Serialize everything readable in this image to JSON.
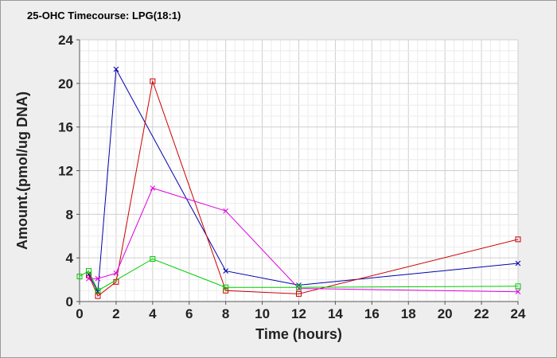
{
  "chart_data": {
    "type": "line",
    "title": "25-OHC Timecourse: LPG(18:1)",
    "xlabel": "Time (hours)",
    "ylabel": "Amount.(pmol/ug DNA)",
    "xlim": [
      0,
      24
    ],
    "ylim": [
      0,
      24
    ],
    "x_ticks": [
      0,
      2,
      4,
      6,
      8,
      10,
      12,
      14,
      16,
      18,
      20,
      22,
      24
    ],
    "y_ticks": [
      0,
      4,
      8,
      12,
      16,
      20,
      24
    ],
    "grid": true,
    "legend": "none",
    "series": [
      {
        "color": "#0000aa",
        "marker": "x",
        "points": [
          [
            0.5,
            2.5
          ],
          [
            1,
            0.9
          ],
          [
            2,
            21.3
          ],
          [
            8,
            2.8
          ],
          [
            12,
            1.5
          ],
          [
            24,
            3.5
          ]
        ]
      },
      {
        "color": "#cc0000",
        "marker": "square",
        "points": [
          [
            0.5,
            2.4
          ],
          [
            1,
            0.5
          ],
          [
            2,
            1.8
          ],
          [
            4,
            20.2
          ],
          [
            8,
            1.0
          ],
          [
            12,
            0.7
          ],
          [
            24,
            5.7
          ]
        ]
      },
      {
        "color": "#dd00dd",
        "marker": "x",
        "points": [
          [
            0.5,
            2.1
          ],
          [
            1,
            2.1
          ],
          [
            2,
            2.6
          ],
          [
            4,
            10.4
          ],
          [
            8,
            8.3
          ],
          [
            12,
            1.2
          ],
          [
            24,
            0.9
          ]
        ]
      },
      {
        "color": "#00cc00",
        "marker": "square",
        "points": [
          [
            0,
            2.3
          ],
          [
            0.5,
            2.8
          ],
          [
            1,
            1.0
          ],
          [
            4,
            3.9
          ],
          [
            8,
            1.3
          ],
          [
            12,
            1.3
          ],
          [
            24,
            1.4
          ]
        ]
      }
    ]
  }
}
